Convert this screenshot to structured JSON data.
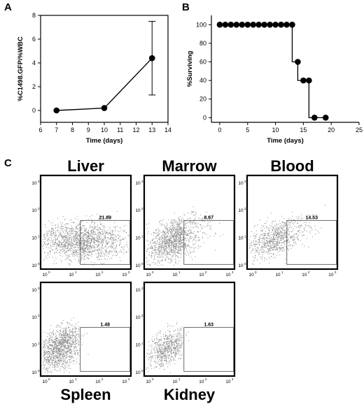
{
  "figure": {
    "panel_a_label": "A",
    "panel_b_label": "B",
    "panel_c_label": "C"
  },
  "chart_data": [
    {
      "id": "A",
      "type": "line",
      "xlabel": "Time (days)",
      "ylabel": "%C1498.GFP/%WBC",
      "xlim": [
        6,
        14
      ],
      "ylim": [
        -1,
        8
      ],
      "xticks": [
        6,
        7,
        8,
        9,
        10,
        11,
        12,
        13,
        14
      ],
      "yticks": [
        0,
        2,
        4,
        6,
        8
      ],
      "x": [
        7,
        10,
        13
      ],
      "y": [
        0.0,
        0.2,
        4.4
      ],
      "error": [
        0,
        0,
        3.1
      ],
      "grid": false,
      "legend": "none"
    },
    {
      "id": "B",
      "type": "line",
      "step": true,
      "xlabel": "Time (days)",
      "ylabel": "%Surviving",
      "xlim": [
        -1.5,
        25
      ],
      "ylim": [
        -5,
        110
      ],
      "xticks": [
        0,
        5,
        10,
        15,
        20,
        25
      ],
      "yticks": [
        0,
        20,
        40,
        60,
        80,
        100
      ],
      "step_x": [
        0,
        13,
        13,
        14,
        14,
        15,
        15,
        16,
        16,
        17,
        17,
        19
      ],
      "step_y": [
        100,
        100,
        60,
        60,
        40,
        40,
        40,
        40,
        0,
        0,
        0,
        0
      ],
      "points_x": [
        0,
        1,
        2,
        3,
        4,
        5,
        6,
        7,
        8,
        9,
        10,
        11,
        12,
        13,
        14,
        15,
        16,
        17,
        19
      ],
      "points_y": [
        100,
        100,
        100,
        100,
        100,
        100,
        100,
        100,
        100,
        100,
        100,
        100,
        100,
        100,
        60,
        40,
        40,
        0,
        0
      ],
      "grid": false,
      "legend": "none"
    },
    {
      "id": "C",
      "type": "scatter",
      "subtype": "flow-cytometry",
      "axis_scale": "log",
      "tick_base": "10",
      "tick_exponents": [
        "0",
        "1",
        "2",
        "3"
      ],
      "plots": [
        {
          "name": "Liver",
          "gate_percent": "21.89",
          "title_position": "top"
        },
        {
          "name": "Marrow",
          "gate_percent": "8.67",
          "title_position": "top"
        },
        {
          "name": "Blood",
          "gate_percent": "14.53",
          "title_position": "top"
        },
        {
          "name": "Spleen",
          "gate_percent": "1.48",
          "title_position": "bottom"
        },
        {
          "name": "Kidney",
          "gate_percent": "1.63",
          "title_position": "bottom"
        }
      ]
    }
  ]
}
